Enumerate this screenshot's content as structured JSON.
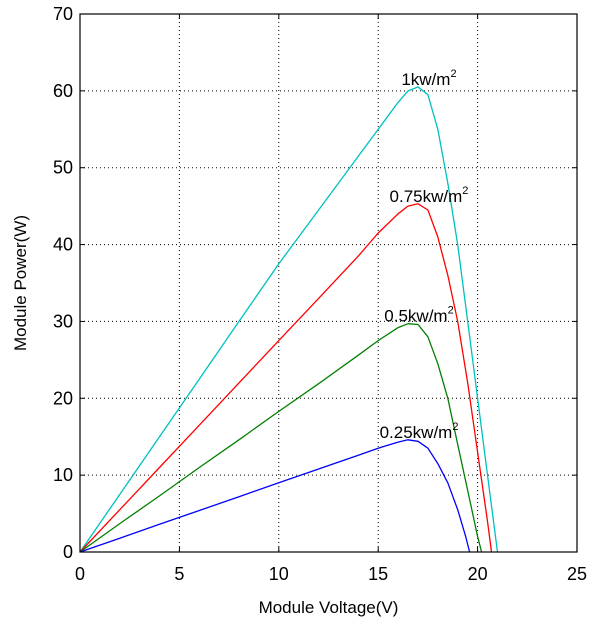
{
  "chart_data": {
    "type": "line",
    "title": "",
    "xlabel": "Module Voltage(V)",
    "ylabel": "Module Power(W)",
    "xlim": [
      0,
      25
    ],
    "ylim": [
      0,
      70
    ],
    "xticks": [
      0,
      5,
      10,
      15,
      20,
      25
    ],
    "yticks": [
      0,
      10,
      20,
      30,
      40,
      50,
      60,
      70
    ],
    "xtick_labels": [
      "0",
      "5",
      "10",
      "15",
      "20",
      "25"
    ],
    "ytick_labels": [
      "0",
      "10",
      "20",
      "30",
      "40",
      "50",
      "60",
      "70"
    ],
    "grid": true,
    "grid_style": "dotted",
    "legend": "none (curves labeled inline)",
    "series": [
      {
        "label_base": "1kw/m",
        "label_sup": "2",
        "color": "#00c0c0",
        "x": [
          0,
          2,
          4,
          6,
          8,
          10,
          12,
          14,
          15,
          16,
          16.5,
          17,
          17.5,
          18,
          18.5,
          19,
          19.5,
          20,
          20.5,
          20.8,
          21.0
        ],
        "y": [
          0,
          7.5,
          15,
          22.5,
          30,
          37.5,
          44.5,
          51.5,
          55,
          58.5,
          60,
          60.5,
          59.5,
          55,
          48,
          40,
          30,
          20,
          10,
          4,
          0
        ]
      },
      {
        "label_base": "0.75kw/m",
        "label_sup": "2",
        "color": "#ff0000",
        "x": [
          0,
          2,
          4,
          6,
          8,
          10,
          12,
          14,
          15,
          16,
          16.5,
          17,
          17.5,
          18,
          18.5,
          19,
          19.5,
          20,
          20.5,
          20.7
        ],
        "y": [
          0,
          5.5,
          11,
          16.5,
          22,
          27.5,
          33,
          38.5,
          41.5,
          44,
          45,
          45.3,
          44.5,
          41,
          36,
          30,
          22,
          13,
          4,
          0
        ]
      },
      {
        "label_base": "0.5kw/m",
        "label_sup": "2",
        "color": "#008000",
        "x": [
          0,
          2,
          4,
          6,
          8,
          10,
          12,
          14,
          15,
          16,
          16.5,
          17,
          17.5,
          18,
          18.5,
          19,
          19.5,
          20,
          20.2
        ],
        "y": [
          0,
          3.7,
          7.3,
          11,
          14.6,
          18.3,
          21.9,
          25.6,
          27.5,
          29.2,
          29.7,
          29.6,
          28,
          24.5,
          20,
          14,
          8,
          2,
          0
        ]
      },
      {
        "label_base": "0.25kw/m",
        "label_sup": "2",
        "color": "#0000ff",
        "x": [
          0,
          2,
          4,
          6,
          8,
          10,
          12,
          14,
          15,
          16,
          16.5,
          17,
          17.5,
          18,
          18.5,
          19,
          19.4,
          19.6
        ],
        "y": [
          0,
          1.8,
          3.6,
          5.4,
          7.2,
          9,
          10.8,
          12.6,
          13.5,
          14.3,
          14.6,
          14.4,
          13.5,
          11.5,
          9,
          5.5,
          2,
          0
        ]
      }
    ]
  }
}
